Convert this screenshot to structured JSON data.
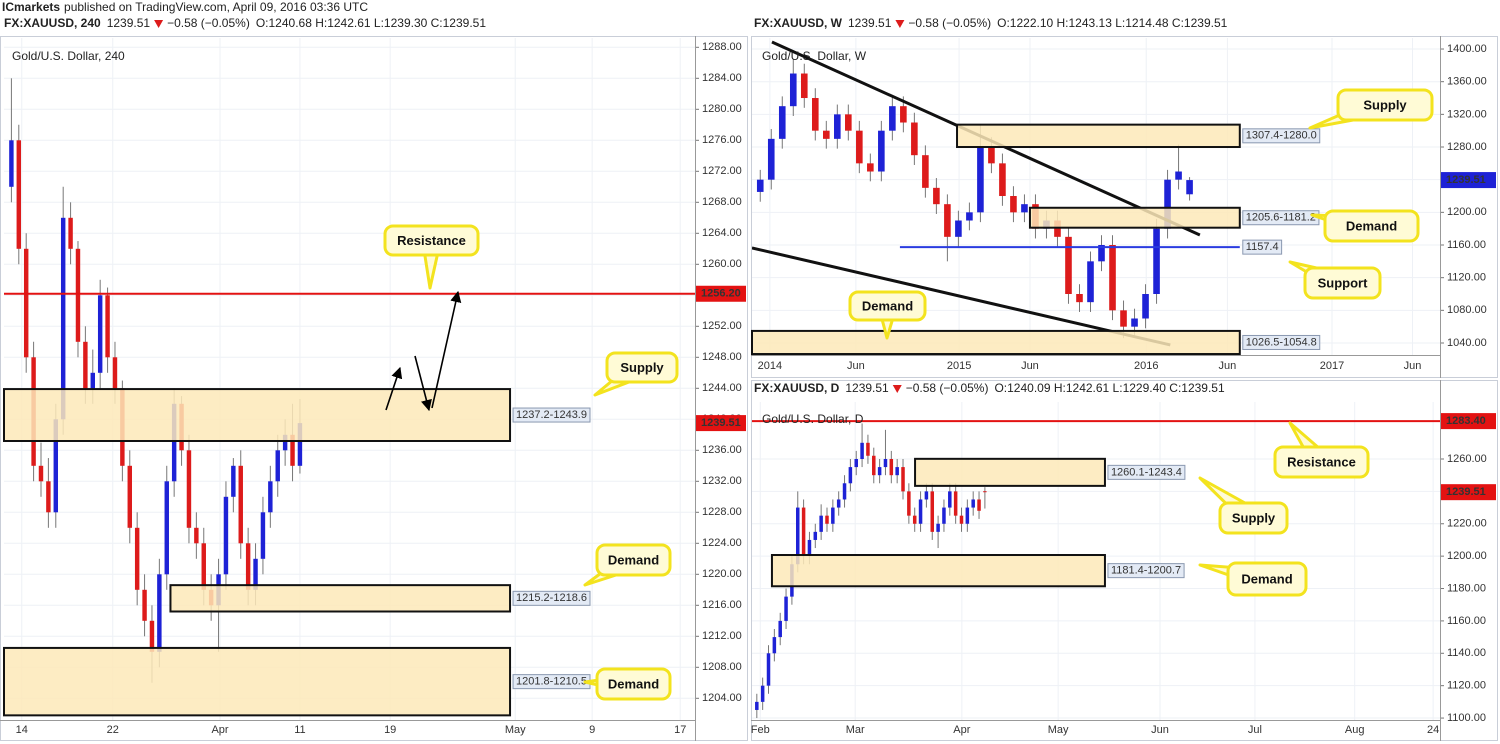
{
  "top_bar": {
    "brand": "ICmarkets",
    "text": "published on TradingView.com, April 09, 2016 03:36 UTC"
  },
  "chart_data": [
    {
      "type": "candlestick",
      "symbol": "FX:XAUUSD, 240",
      "price": "1239.51",
      "change": "−0.58 (−0.05%)",
      "ohlc": "O:1240.68 H:1242.61 L:1239.30 C:1239.51",
      "title": "Gold/U.S. Dollar, 240",
      "up_color": "#1e22d6",
      "down_color": "#dd1b1b",
      "grid": true,
      "xlim": [
        0,
        93.4
      ],
      "ylim": [
        1201.2,
        1289.2
      ],
      "xticks": [
        {
          "value": 2.4,
          "label": "14"
        },
        {
          "value": 14.7,
          "label": "22"
        },
        {
          "value": 29.2,
          "label": "Apr"
        },
        {
          "value": 40.0,
          "label": "11"
        },
        {
          "value": 52.2,
          "label": "19"
        },
        {
          "value": 69.1,
          "label": "May"
        },
        {
          "value": 79.5,
          "label": "9"
        },
        {
          "value": 91.4,
          "label": "17"
        }
      ],
      "yticks": [
        {
          "value": 1204,
          "label": "1204.00"
        },
        {
          "value": 1208,
          "label": "1208.00"
        },
        {
          "value": 1212,
          "label": "1212.00"
        },
        {
          "value": 1216,
          "label": "1216.00"
        },
        {
          "value": 1220,
          "label": "1220.00"
        },
        {
          "value": 1224,
          "label": "1224.00"
        },
        {
          "value": 1228,
          "label": "1228.00"
        },
        {
          "value": 1232,
          "label": "1232.00"
        },
        {
          "value": 1236,
          "label": "1236.00"
        },
        {
          "value": 1240,
          "label": "1240.00"
        },
        {
          "value": 1244,
          "label": "1244.00"
        },
        {
          "value": 1248,
          "label": "1248.00"
        },
        {
          "value": 1252,
          "label": "1252.00"
        },
        {
          "value": 1256,
          "label": "1256.00"
        },
        {
          "value": 1260,
          "label": "1260.00"
        },
        {
          "value": 1264,
          "label": "1264.00"
        },
        {
          "value": 1268,
          "label": "1268.00"
        },
        {
          "value": 1272,
          "label": "1272.00"
        },
        {
          "value": 1276,
          "label": "1276.00"
        },
        {
          "value": 1280,
          "label": "1280.00"
        },
        {
          "value": 1284,
          "label": "1284.00"
        },
        {
          "value": 1288,
          "label": "1288.00"
        }
      ],
      "x": [
        1,
        2,
        3,
        4,
        5,
        6,
        7,
        8,
        9,
        10,
        11,
        12,
        13,
        14,
        15,
        16,
        17,
        18,
        19,
        20,
        21,
        22,
        23,
        24,
        25,
        26,
        27,
        28,
        29,
        30,
        31,
        32,
        33,
        34,
        35,
        36,
        37,
        38,
        39,
        40
      ],
      "open": [
        1270,
        1276,
        1262,
        1248,
        1234,
        1232,
        1228,
        1240,
        1266,
        1262,
        1250,
        1244,
        1246,
        1256,
        1248,
        1244,
        1234,
        1226,
        1218,
        1214,
        1210,
        1220,
        1232,
        1242,
        1236,
        1226,
        1224,
        1218,
        1216,
        1220,
        1230,
        1234,
        1224,
        1218,
        1222,
        1228,
        1232,
        1236,
        1238,
        1234
      ],
      "high": [
        1284,
        1278,
        1264,
        1250,
        1237,
        1235,
        1242,
        1270,
        1268,
        1263,
        1252,
        1249,
        1258,
        1257,
        1250,
        1245,
        1236,
        1228,
        1220,
        1216,
        1222,
        1234,
        1244,
        1243,
        1238,
        1228,
        1226,
        1220,
        1222,
        1232,
        1235,
        1236,
        1226,
        1224,
        1230,
        1234,
        1238,
        1240,
        1242,
        1242.61
      ],
      "low": [
        1268,
        1260,
        1246,
        1232,
        1230,
        1226,
        1226,
        1238,
        1260,
        1248,
        1242,
        1242,
        1244,
        1246,
        1242,
        1232,
        1224,
        1216,
        1212,
        1206,
        1208,
        1218,
        1230,
        1234,
        1224,
        1222,
        1216,
        1214,
        1210,
        1218,
        1228,
        1222,
        1216,
        1216,
        1220,
        1226,
        1230,
        1234,
        1232,
        1233
      ],
      "close": [
        1276,
        1262,
        1248,
        1234,
        1232,
        1228,
        1240,
        1266,
        1262,
        1250,
        1244,
        1246,
        1256,
        1248,
        1244,
        1234,
        1226,
        1218,
        1214,
        1210,
        1220,
        1232,
        1242,
        1236,
        1226,
        1224,
        1218,
        1216,
        1220,
        1230,
        1234,
        1224,
        1218,
        1222,
        1228,
        1232,
        1236,
        1238,
        1234,
        1239.51
      ],
      "zones": [
        {
          "low": 1237.2,
          "high": 1243.9,
          "label": "1237.2-1243.9",
          "x_start": 0,
          "x_end": 68.4
        },
        {
          "low": 1215.2,
          "high": 1218.6,
          "label": "1215.2-1218.6",
          "x_start": 22.5,
          "x_end": 68.4
        },
        {
          "low": 1201.8,
          "high": 1210.5,
          "label": "1201.8-1210.5",
          "x_start": 0,
          "x_end": 68.4
        }
      ],
      "hlines": [
        {
          "value": 1256.2,
          "color": "#e31212",
          "x_start": 0,
          "x_end": 93.4
        }
      ],
      "price_tags": [
        {
          "value": 1256.2,
          "label": "1256.20",
          "color": "#e31212"
        },
        {
          "value": 1239.51,
          "color": "#e31212"
        }
      ],
      "annotations": [
        "Resistance",
        "Supply",
        "Demand",
        "Demand"
      ]
    },
    {
      "type": "candlestick",
      "symbol": "FX:XAUUSD, W",
      "price": "1239.51",
      "change": "−0.58 (−0.05%)",
      "ohlc": "O:1222.10 H:1243.13 L:1214.48 C:1239.51",
      "title": "Gold/U.S. Dollar, W",
      "up_color": "#1e22d6",
      "down_color": "#dd1b1b",
      "grid": true,
      "xlim": [
        0,
        100
      ],
      "ylim": [
        1025.3,
        1413.5
      ],
      "xticks": [
        {
          "value": 2.6,
          "label": "2014"
        },
        {
          "value": 15.1,
          "label": "Jun"
        },
        {
          "value": 30.1,
          "label": "2015"
        },
        {
          "value": 40.4,
          "label": "Jun"
        },
        {
          "value": 57.3,
          "label": "2016"
        },
        {
          "value": 69.1,
          "label": "Jun"
        },
        {
          "value": 84.3,
          "label": "2017"
        },
        {
          "value": 96.0,
          "label": "Jun"
        }
      ],
      "yticks": [
        {
          "value": 1040,
          "label": "1040.00"
        },
        {
          "value": 1080,
          "label": "1080.00"
        },
        {
          "value": 1120,
          "label": "1120.00"
        },
        {
          "value": 1160,
          "label": "1160.00"
        },
        {
          "value": 1200,
          "label": "1200.00"
        },
        {
          "value": 1240,
          "label": "1240.00"
        },
        {
          "value": 1280,
          "label": "1280.00"
        },
        {
          "value": 1320,
          "label": "1320.00"
        },
        {
          "value": 1360,
          "label": "1360.00"
        },
        {
          "value": 1400,
          "label": "1400.00"
        }
      ],
      "x": [
        1.2,
        2.8,
        4.4,
        6,
        7.6,
        9.2,
        10.8,
        12.4,
        14,
        15.6,
        17.2,
        18.8,
        20.4,
        22,
        23.6,
        25.2,
        26.8,
        28.4,
        30,
        31.6,
        33.2,
        34.8,
        36.4,
        38,
        39.6,
        41.2,
        42.8,
        44.4,
        46,
        47.6,
        49.2,
        50.8,
        52.4,
        54,
        55.6,
        57.2,
        58.8,
        60.4,
        62,
        63.6
      ],
      "open": [
        1225,
        1240,
        1290,
        1330,
        1370,
        1340,
        1300,
        1290,
        1320,
        1300,
        1260,
        1250,
        1300,
        1330,
        1310,
        1270,
        1230,
        1210,
        1170,
        1190,
        1200,
        1280,
        1260,
        1220,
        1200,
        1210,
        1180,
        1190,
        1170,
        1100,
        1090,
        1140,
        1160,
        1080,
        1060,
        1070,
        1100,
        1180,
        1240,
        1222.1
      ],
      "high": [
        1252,
        1302,
        1342,
        1388,
        1382,
        1352,
        1312,
        1332,
        1332,
        1312,
        1272,
        1312,
        1342,
        1342,
        1322,
        1282,
        1242,
        1222,
        1202,
        1212,
        1307,
        1292,
        1272,
        1232,
        1222,
        1222,
        1202,
        1202,
        1182,
        1112,
        1152,
        1172,
        1172,
        1092,
        1082,
        1112,
        1192,
        1252,
        1283,
        1243.13
      ],
      "low": [
        1213,
        1228,
        1278,
        1318,
        1328,
        1288,
        1278,
        1278,
        1288,
        1248,
        1238,
        1238,
        1288,
        1298,
        1258,
        1218,
        1198,
        1140,
        1158,
        1178,
        1188,
        1248,
        1208,
        1188,
        1188,
        1168,
        1168,
        1158,
        1088,
        1078,
        1078,
        1128,
        1068,
        1046,
        1048,
        1058,
        1088,
        1168,
        1228,
        1214.48
      ],
      "close": [
        1240,
        1290,
        1330,
        1370,
        1340,
        1300,
        1290,
        1320,
        1300,
        1260,
        1250,
        1300,
        1330,
        1310,
        1270,
        1230,
        1210,
        1170,
        1190,
        1200,
        1280,
        1260,
        1220,
        1200,
        1210,
        1180,
        1190,
        1170,
        1100,
        1090,
        1140,
        1160,
        1080,
        1060,
        1070,
        1100,
        1180,
        1240,
        1250,
        1239.51
      ],
      "zones": [
        {
          "low": 1280.0,
          "high": 1307.4,
          "label": "1307.4-1280.0",
          "x_start": 29.8,
          "x_end": 70.9
        },
        {
          "low": 1181.2,
          "high": 1205.6,
          "label": "1205.6-1181.2",
          "x_start": 40.4,
          "x_end": 70.9
        },
        {
          "low": 1026.5,
          "high": 1054.8,
          "label": "1026.5-1054.8",
          "x_start": 0,
          "x_end": 70.9
        }
      ],
      "hlines": [
        {
          "value": 1157.4,
          "color": "#2a3be0",
          "x_start": 21.5,
          "x_end": 70.9,
          "labeled": true
        }
      ],
      "trendlines": [
        {
          "x": [
            2.9,
            65.1
          ],
          "y": [
            1408.6,
            1172.3
          ]
        },
        {
          "x": [
            0,
            60.8
          ],
          "y": [
            1156.4,
            1037.6
          ]
        }
      ],
      "price_tags": [
        {
          "value": 1239.51,
          "color": "#1e22d6"
        }
      ],
      "annotations": [
        "Supply",
        "Demand",
        "Support",
        "Demand"
      ]
    },
    {
      "type": "candlestick",
      "symbol": "FX:XAUUSD, D",
      "price": "1239.51",
      "change": "−0.58 (−0.05%)",
      "ohlc": "O:1240.09 H:1242.61 L:1229.40 C:1239.51",
      "title": "Gold/U.S. Dollar, D",
      "up_color": "#1e22d6",
      "down_color": "#dd1b1b",
      "grid": true,
      "xlim": [
        0,
        100
      ],
      "ylim": [
        1098.8,
        1295.2
      ],
      "xticks": [
        {
          "value": 1.2,
          "label": "Feb"
        },
        {
          "value": 15.0,
          "label": "Mar"
        },
        {
          "value": 30.5,
          "label": "Apr"
        },
        {
          "value": 44.5,
          "label": "May"
        },
        {
          "value": 59.3,
          "label": "Jun"
        },
        {
          "value": 73.1,
          "label": "Jul"
        },
        {
          "value": 87.6,
          "label": "Aug"
        },
        {
          "value": 99.0,
          "label": "24"
        }
      ],
      "yticks": [
        {
          "value": 1100,
          "label": "1100.00"
        },
        {
          "value": 1120,
          "label": "1120.00"
        },
        {
          "value": 1140,
          "label": "1140.00"
        },
        {
          "value": 1160,
          "label": "1160.00"
        },
        {
          "value": 1180,
          "label": "1180.00"
        },
        {
          "value": 1200,
          "label": "1200.00"
        },
        {
          "value": 1220,
          "label": "1220.00"
        },
        {
          "value": 1240,
          "label": "1240.00"
        },
        {
          "value": 1260,
          "label": "1260.00"
        }
      ],
      "x": [
        0.7,
        1.55,
        2.4,
        3.25,
        4.1,
        4.95,
        5.8,
        6.65,
        7.5,
        8.35,
        9.2,
        10.05,
        10.9,
        11.75,
        12.6,
        13.45,
        14.3,
        15.15,
        16,
        16.85,
        17.7,
        18.55,
        19.4,
        20.25,
        21.1,
        21.95,
        22.8,
        23.65,
        24.5,
        25.35,
        26.2,
        27.05,
        27.9,
        28.75,
        29.6,
        30.45,
        31.3,
        32.15,
        33,
        33.85
      ],
      "open": [
        1105,
        1110,
        1120,
        1140,
        1150,
        1160,
        1175,
        1195,
        1230,
        1200,
        1210,
        1215,
        1225,
        1220,
        1230,
        1235,
        1245,
        1255,
        1260,
        1270,
        1262,
        1250,
        1255,
        1260,
        1250,
        1255,
        1240,
        1225,
        1220,
        1235,
        1240,
        1215,
        1220,
        1230,
        1240,
        1225,
        1220,
        1230,
        1235,
        1240.09
      ],
      "high": [
        1115,
        1125,
        1145,
        1155,
        1165,
        1180,
        1200,
        1240,
        1235,
        1215,
        1220,
        1232,
        1230,
        1235,
        1240,
        1250,
        1260,
        1265,
        1282,
        1275,
        1267,
        1260,
        1278,
        1265,
        1260,
        1260,
        1245,
        1230,
        1240,
        1245,
        1245,
        1225,
        1235,
        1245,
        1245,
        1230,
        1235,
        1240,
        1240,
        1242.61
      ],
      "low": [
        1100,
        1105,
        1115,
        1135,
        1145,
        1155,
        1170,
        1190,
        1195,
        1195,
        1205,
        1210,
        1215,
        1215,
        1225,
        1230,
        1240,
        1250,
        1255,
        1257,
        1245,
        1245,
        1250,
        1245,
        1245,
        1235,
        1220,
        1215,
        1215,
        1230,
        1210,
        1205,
        1215,
        1225,
        1220,
        1215,
        1215,
        1225,
        1223,
        1229.4
      ],
      "close": [
        1110,
        1120,
        1140,
        1150,
        1160,
        1175,
        1195,
        1230,
        1200,
        1210,
        1215,
        1225,
        1220,
        1230,
        1235,
        1245,
        1255,
        1260,
        1270,
        1262,
        1250,
        1255,
        1260,
        1250,
        1255,
        1240,
        1225,
        1220,
        1235,
        1240,
        1215,
        1220,
        1230,
        1240,
        1225,
        1220,
        1230,
        1235,
        1228,
        1239.51
      ],
      "zones": [
        {
          "low": 1243.4,
          "high": 1260.1,
          "label": "1260.1-1243.4",
          "x_start": 23.7,
          "x_end": 51.3
        },
        {
          "low": 1181.4,
          "high": 1200.7,
          "label": "1181.4-1200.7",
          "x_start": 2.9,
          "x_end": 51.3
        }
      ],
      "hlines": [
        {
          "value": 1283.4,
          "color": "#e31212",
          "x_start": 0,
          "x_end": 100
        }
      ],
      "price_tags": [
        {
          "value": 1283.4,
          "label": "1283.40",
          "color": "#e31212"
        },
        {
          "value": 1239.51,
          "color": "#e31212"
        }
      ],
      "annotations": [
        "Resistance",
        "Supply",
        "Demand"
      ]
    }
  ]
}
